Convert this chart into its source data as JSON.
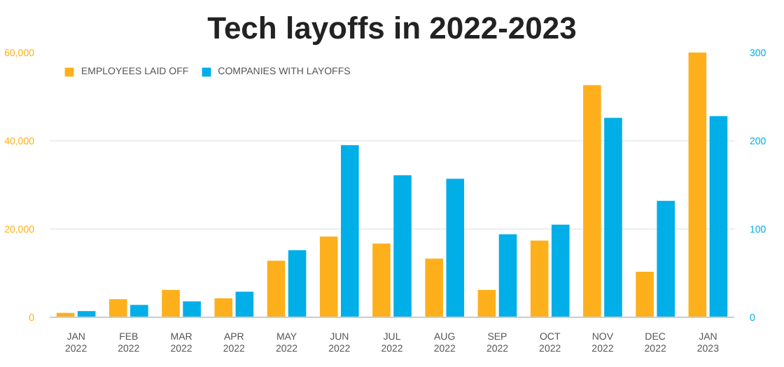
{
  "chart_data": {
    "type": "bar",
    "title": "Tech layoffs in 2022-2023",
    "categories": [
      "JAN\n2022",
      "FEB\n2022",
      "MAR\n2022",
      "APR\n2022",
      "MAY\n2022",
      "JUN\n2022",
      "JUL\n2022",
      "AUG\n2022",
      "SEP\n2022",
      "OCT\n2022",
      "NOV\n2022",
      "DEC\n2022",
      "JAN\n2023"
    ],
    "series": [
      {
        "name": "EMPLOYEES LAID OFF",
        "color": "#fdb01b",
        "values": [
          1000,
          4100,
          6200,
          4300,
          12800,
          18300,
          16700,
          13300,
          6200,
          17400,
          52600,
          10300,
          60000
        ]
      },
      {
        "name": "COMPANIES WITH LAYOFFS",
        "color": "#00aee8",
        "axis": "y2",
        "values": [
          7,
          14,
          18,
          29,
          76,
          195,
          161,
          157,
          94,
          105,
          226,
          132,
          228
        ]
      }
    ],
    "ylim": [
      0,
      60000
    ],
    "yticks": [
      0,
      {
        "value": 20000,
        "label": "20,000"
      },
      {
        "value": 40000,
        "label": "40,000"
      },
      {
        "value": 60000,
        "label": "60,000"
      }
    ],
    "y2lim": [
      0,
      300
    ],
    "y2ticks": [
      0,
      100,
      200,
      300
    ],
    "grid": "y",
    "legend": "top left"
  }
}
